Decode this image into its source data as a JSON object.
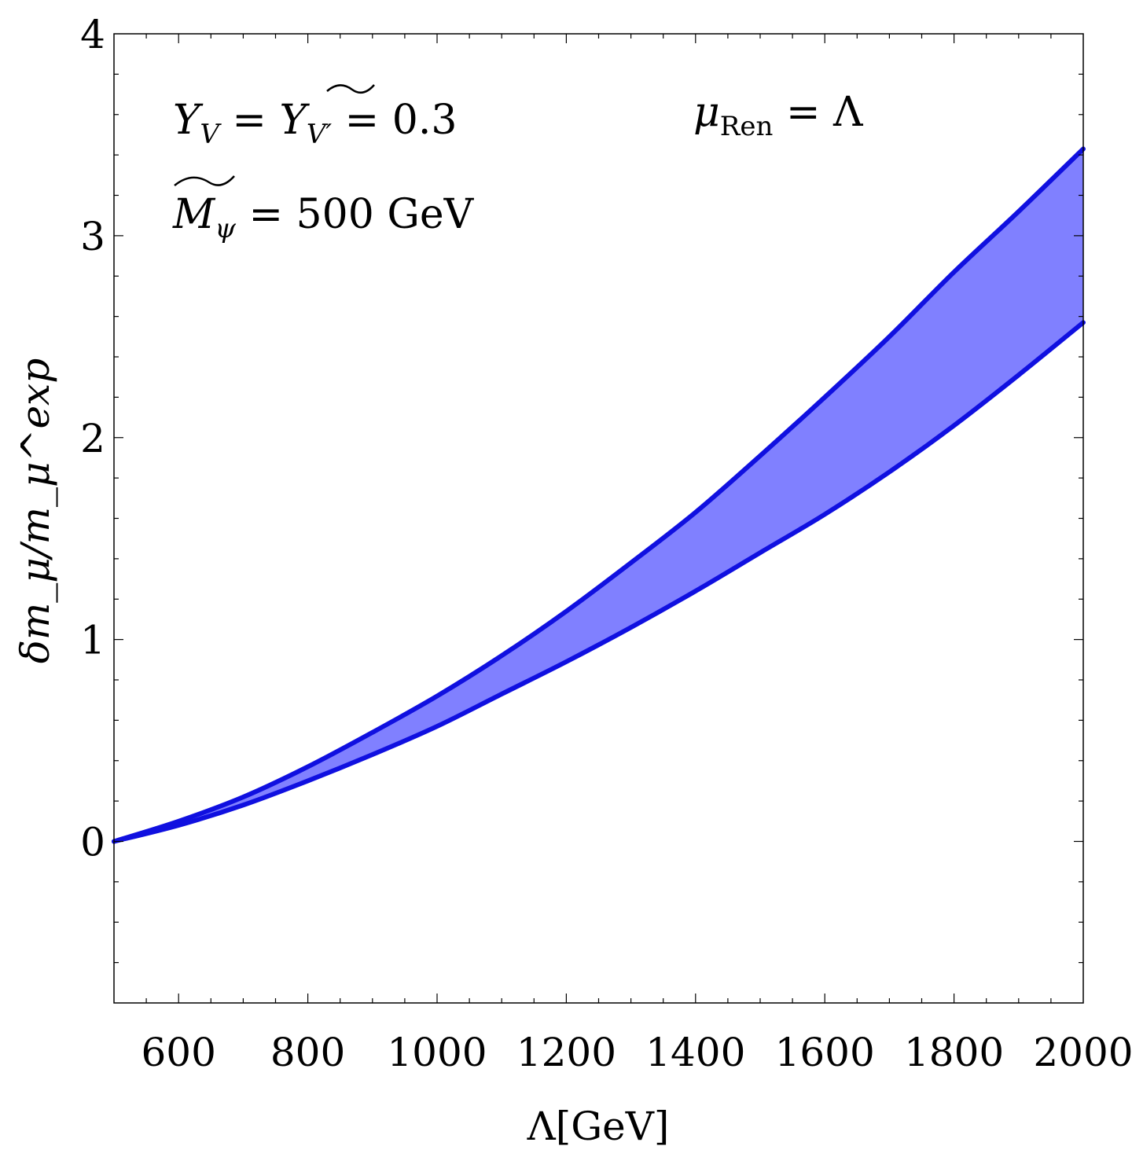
{
  "chart_data": {
    "type": "area",
    "xlabel": "Λ[GeV]",
    "ylabel": "δm_μ/m_μ^exp",
    "xlim": [
      500,
      2000
    ],
    "ylim": [
      -0.8,
      4
    ],
    "x_ticks": [
      600,
      800,
      1000,
      1200,
      1400,
      1600,
      1800,
      2000
    ],
    "y_ticks": [
      0,
      1,
      2,
      3,
      4
    ],
    "grid": false,
    "fill_color": "#8080ff",
    "line_color": "#1010e0",
    "series": [
      {
        "role": "upper",
        "x": [
          500,
          600,
          700,
          800,
          900,
          1000,
          1100,
          1200,
          1300,
          1400,
          1500,
          1600,
          1700,
          1800,
          1900,
          2000
        ],
        "y": [
          0.0,
          0.1,
          0.22,
          0.37,
          0.54,
          0.72,
          0.92,
          1.14,
          1.38,
          1.63,
          1.91,
          2.2,
          2.5,
          2.82,
          3.12,
          3.43
        ]
      },
      {
        "role": "lower",
        "x": [
          500,
          600,
          700,
          800,
          900,
          1000,
          1100,
          1200,
          1300,
          1400,
          1500,
          1600,
          1700,
          1800,
          1900,
          2000
        ],
        "y": [
          0.0,
          0.08,
          0.18,
          0.3,
          0.43,
          0.57,
          0.73,
          0.89,
          1.06,
          1.24,
          1.43,
          1.62,
          1.83,
          2.06,
          2.31,
          2.57
        ]
      }
    ]
  },
  "annotations": {
    "coupling_lhs": "Y",
    "coupling_lhs_sub": "V",
    "coupling_eq1": " = ",
    "coupling_rhs": "Y",
    "coupling_rhs_sub": "V′",
    "coupling_eq2": " = 0.3",
    "mass_sym": "M",
    "mass_sub": "ψ",
    "mass_rest": " = 500 GeV",
    "scale_sym": "μ",
    "scale_sub": "Ren",
    "scale_rest": " = Λ"
  }
}
